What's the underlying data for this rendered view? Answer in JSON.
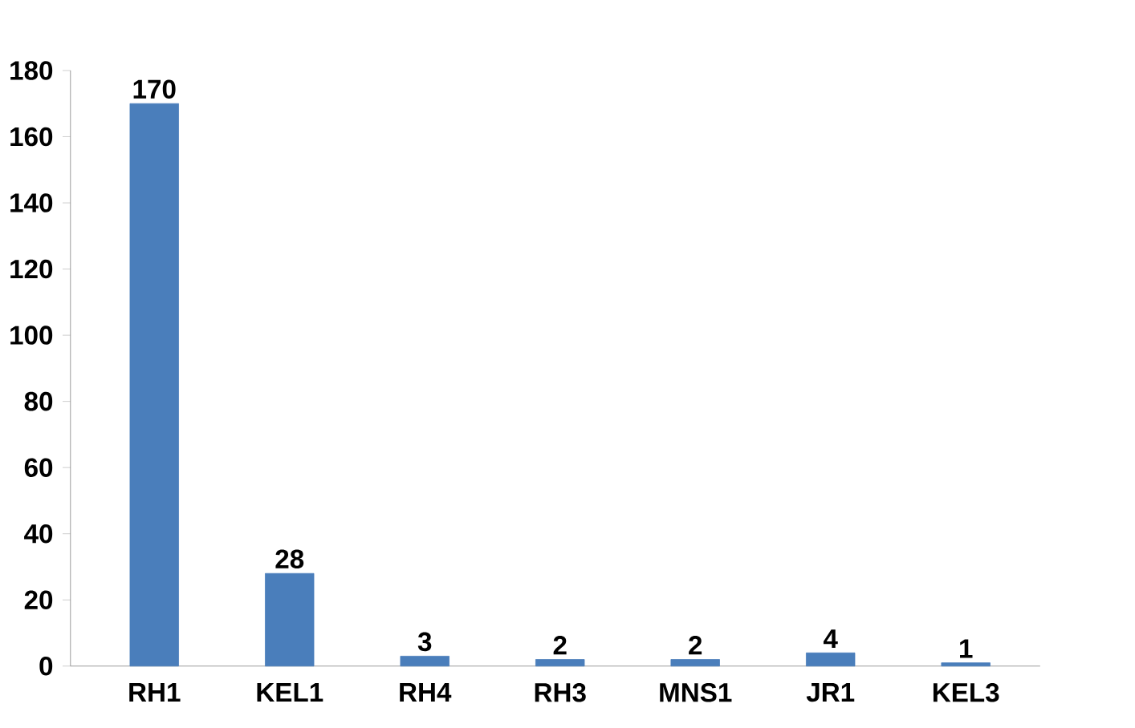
{
  "chart_data": {
    "type": "bar",
    "categories": [
      "RH1",
      "KEL1",
      "RH4",
      "RH3",
      "MNS1",
      "JR1",
      "KEL3"
    ],
    "values": [
      170,
      28,
      3,
      2,
      2,
      4,
      1
    ],
    "color": "#4a7ebb",
    "ylim": [
      0,
      180
    ],
    "yticks": [
      0,
      20,
      40,
      60,
      80,
      100,
      120,
      140,
      160,
      180
    ],
    "data_labels": true,
    "grid": false
  }
}
